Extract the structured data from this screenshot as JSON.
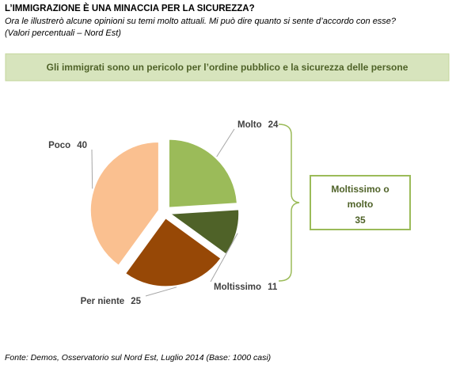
{
  "chart_data": {
    "type": "pie",
    "title": "L’IMMIGRAZIONE  È UNA MINACCIA PER LA SICUREZZA?",
    "subtitle": [
      "Ora le illustrerò alcune opinioni su temi molto attuali. Mi può dire quanto si sente d’accordo con esse?",
      "(Valori percentuali – Nord Est)"
    ],
    "question": "Gli immigrati sono un pericolo per l’ordine pubblico  e la sicurezza delle persone",
    "categories": [
      "Molto",
      "Moltissimo",
      "Per niente",
      "Poco"
    ],
    "values": [
      24,
      11,
      25,
      40
    ],
    "colors": [
      "#9bbb59",
      "#4f6228",
      "#974806",
      "#fac090"
    ],
    "annotation": {
      "text": "Moltissimo o molto",
      "value": 35
    },
    "source": "Fonte: Demos, Osservatorio sul Nord Est, Luglio 2014 (Base: 1000 casi)"
  }
}
